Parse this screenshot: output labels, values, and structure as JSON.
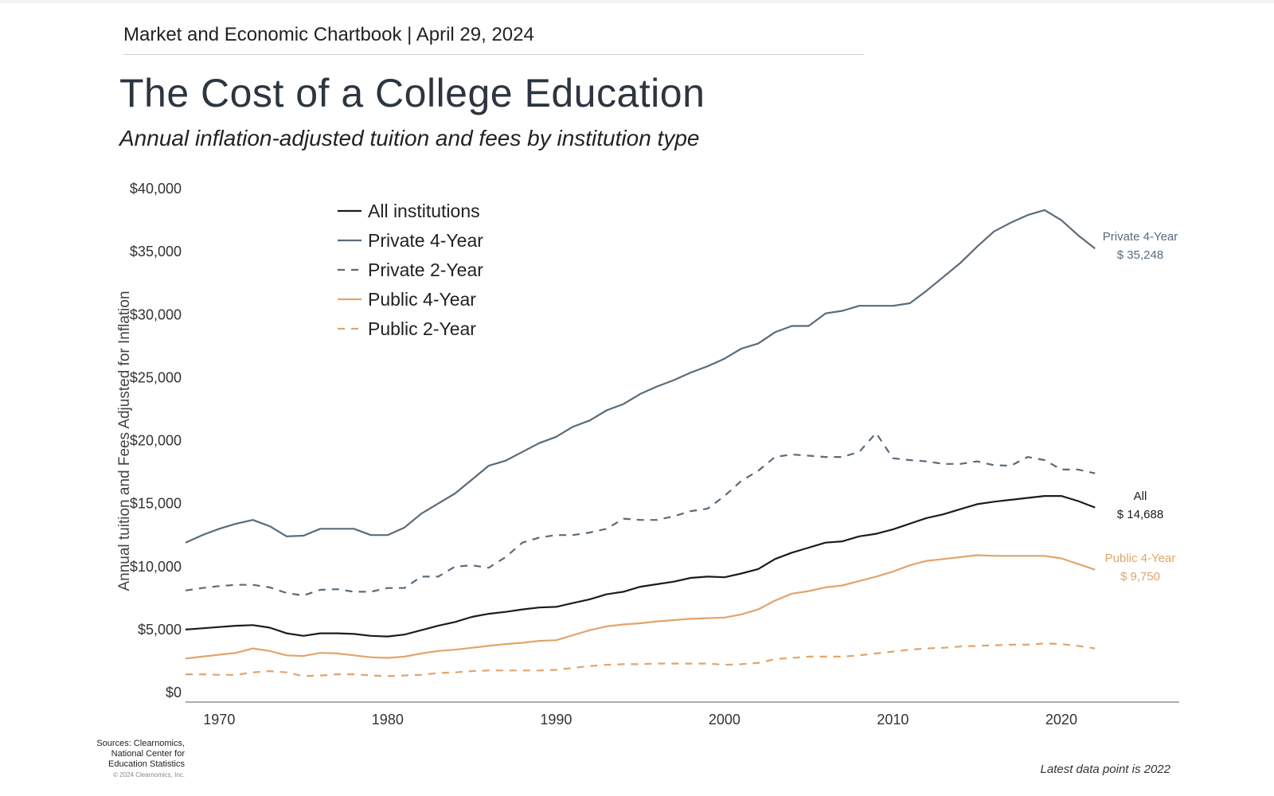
{
  "header": "Market and Economic Chartbook | April 29, 2024",
  "title": "The Cost of a College Education",
  "subtitle": "Annual inflation-adjusted tuition and fees by institution type",
  "sources": [
    "Sources: Clearnomics,",
    "National Center for",
    "Education Statistics"
  ],
  "copyright": "© 2024 Clearnomics, Inc.",
  "footnote": "Latest data point is 2022",
  "chart_data": {
    "type": "line",
    "ylabel": "Annual tuition and Fees Adjusted for Inflation",
    "xlabel": "",
    "xlim": [
      1968,
      2027
    ],
    "ylim": [
      0,
      40000
    ],
    "x_ticks": [
      1970,
      1980,
      1990,
      2000,
      2010,
      2020
    ],
    "x_tick_labels": [
      "1970",
      "1980",
      "1990",
      "2000",
      "2010",
      "2020"
    ],
    "y_ticks": [
      0,
      5000,
      10000,
      15000,
      20000,
      25000,
      30000,
      35000,
      40000
    ],
    "y_tick_labels": [
      "$0",
      "$5,000",
      "$10,000",
      "$15,000",
      "$20,000",
      "$25,000",
      "$30,000",
      "$35,000",
      "$40,000"
    ],
    "grid": false,
    "legend_position": "top-left",
    "x": [
      1968,
      1969,
      1970,
      1971,
      1972,
      1973,
      1974,
      1975,
      1976,
      1977,
      1978,
      1979,
      1980,
      1981,
      1982,
      1983,
      1984,
      1985,
      1986,
      1987,
      1988,
      1989,
      1990,
      1991,
      1992,
      1993,
      1994,
      1995,
      1996,
      1997,
      1998,
      1999,
      2000,
      2001,
      2002,
      2003,
      2004,
      2005,
      2006,
      2007,
      2008,
      2009,
      2010,
      2011,
      2012,
      2013,
      2014,
      2015,
      2016,
      2017,
      2018,
      2019,
      2020,
      2021,
      2022
    ],
    "series": [
      {
        "name": "All institutions",
        "color": "#1c1c1c",
        "dash": "solid",
        "values": [
          5000,
          5100,
          5200,
          5300,
          5350,
          5150,
          4700,
          4500,
          4700,
          4700,
          4650,
          4500,
          4450,
          4600,
          4950,
          5300,
          5600,
          6000,
          6250,
          6400,
          6600,
          6750,
          6800,
          7100,
          7400,
          7800,
          8000,
          8400,
          8600,
          8800,
          9100,
          9200,
          9150,
          9450,
          9800,
          10600,
          11100,
          11500,
          11900,
          12000,
          12400,
          12600,
          12950,
          13400,
          13850,
          14150,
          14550,
          14950,
          15150,
          15300,
          15450,
          15600,
          15600,
          15200,
          14688
        ],
        "end_label": [
          "All",
          "$ 14,688"
        ]
      },
      {
        "name": "Private 4-Year",
        "color": "#5a6b7a",
        "dash": "solid",
        "values": [
          11900,
          12500,
          13000,
          13400,
          13700,
          13200,
          12400,
          12450,
          13000,
          13000,
          13000,
          12500,
          12500,
          13100,
          14200,
          15000,
          15800,
          16900,
          18000,
          18400,
          19100,
          19800,
          20300,
          21100,
          21600,
          22400,
          22900,
          23700,
          24300,
          24800,
          25400,
          25900,
          26500,
          27300,
          27700,
          28600,
          29100,
          29100,
          30100,
          30300,
          30700,
          30700,
          30700,
          30900,
          31900,
          33000,
          34100,
          35400,
          36600,
          37300,
          37900,
          38300,
          37500,
          36300,
          35248
        ],
        "end_label": [
          "Private 4-Year",
          "$ 35,248"
        ]
      },
      {
        "name": "Private 2-Year",
        "color": "#5a6b7a",
        "dash": "dashed",
        "values": [
          8100,
          8300,
          8450,
          8550,
          8550,
          8350,
          7900,
          7700,
          8150,
          8200,
          8000,
          8000,
          8300,
          8300,
          9200,
          9200,
          10000,
          10100,
          9900,
          10750,
          11900,
          12300,
          12500,
          12500,
          12700,
          13000,
          13800,
          13700,
          13700,
          14000,
          14400,
          14600,
          15600,
          16800,
          17600,
          18700,
          18900,
          18800,
          18700,
          18700,
          19100,
          20600,
          18600,
          18450,
          18350,
          18150,
          18150,
          18350,
          18050,
          18000,
          18700,
          18450,
          17700,
          17700,
          17400
        ],
        "end_label": null
      },
      {
        "name": "Public 4-Year",
        "color": "#e2a46b",
        "dash": "solid",
        "values": [
          2700,
          2850,
          3000,
          3150,
          3500,
          3300,
          2950,
          2900,
          3150,
          3100,
          2950,
          2800,
          2750,
          2850,
          3100,
          3300,
          3400,
          3550,
          3700,
          3850,
          3950,
          4100,
          4150,
          4550,
          4950,
          5250,
          5400,
          5500,
          5650,
          5750,
          5850,
          5900,
          5950,
          6200,
          6600,
          7300,
          7850,
          8050,
          8350,
          8500,
          8850,
          9200,
          9600,
          10100,
          10450,
          10600,
          10750,
          10900,
          10850,
          10850,
          10850,
          10850,
          10650,
          10200,
          9750
        ],
        "end_label": [
          "Public 4-Year",
          "$ 9,750"
        ]
      },
      {
        "name": "Public 2-Year",
        "color": "#e2a46b",
        "dash": "dashed",
        "values": [
          1450,
          1450,
          1400,
          1400,
          1600,
          1700,
          1600,
          1300,
          1350,
          1450,
          1450,
          1350,
          1300,
          1350,
          1400,
          1550,
          1600,
          1700,
          1750,
          1750,
          1750,
          1750,
          1800,
          1950,
          2100,
          2200,
          2250,
          2250,
          2300,
          2300,
          2300,
          2300,
          2200,
          2250,
          2350,
          2650,
          2750,
          2850,
          2850,
          2850,
          2950,
          3100,
          3250,
          3400,
          3500,
          3550,
          3650,
          3700,
          3750,
          3800,
          3800,
          3900,
          3850,
          3700,
          3500
        ],
        "end_label": null
      }
    ]
  }
}
